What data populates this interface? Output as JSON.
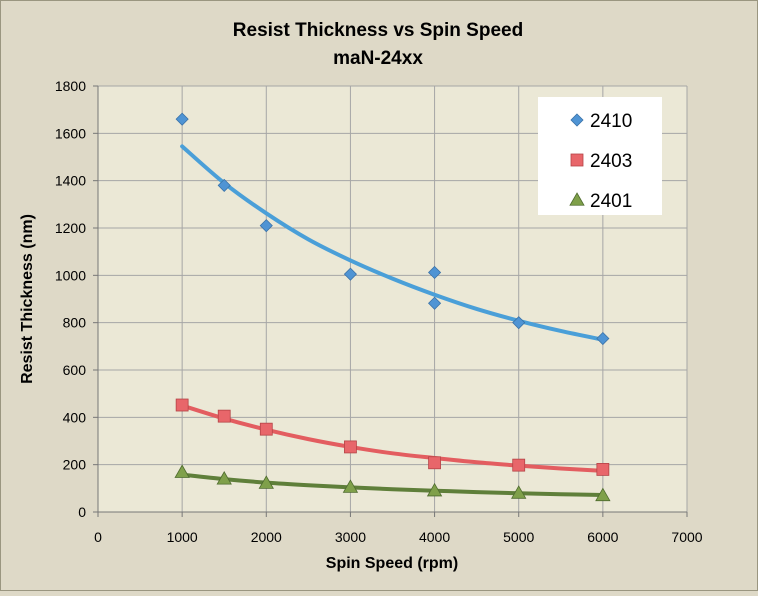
{
  "chart_data": {
    "type": "scatter",
    "title": "Resist Thickness vs Spin Speed",
    "subtitle": "maN-24xx",
    "xlabel": "Spin Speed (rpm)",
    "ylabel": "Resist Thickness (nm)",
    "xlim": [
      0,
      7000
    ],
    "ylim": [
      0,
      1800
    ],
    "xticks": [
      0,
      1000,
      2000,
      3000,
      4000,
      5000,
      6000,
      7000
    ],
    "yticks": [
      0,
      200,
      400,
      600,
      800,
      1000,
      1200,
      1400,
      1600,
      1800
    ],
    "grid": true,
    "legend_position": "top-right",
    "colors": {
      "background": "#ded9c7",
      "plot_area": "#ebe8d6",
      "grid": "#a6a6a6"
    },
    "series": [
      {
        "name": "2410",
        "marker": "diamond",
        "color": "#4f94d4",
        "line_color": "#4a9fd8",
        "points": [
          [
            1000,
            1660
          ],
          [
            1500,
            1380
          ],
          [
            2000,
            1210
          ],
          [
            3000,
            1005
          ],
          [
            4000,
            1012
          ],
          [
            4000,
            882
          ],
          [
            5000,
            800
          ],
          [
            6000,
            733
          ]
        ],
        "trend": [
          [
            1000,
            1545
          ],
          [
            1500,
            1390
          ],
          [
            2000,
            1262
          ],
          [
            2500,
            1152
          ],
          [
            3000,
            1063
          ],
          [
            3500,
            986
          ],
          [
            4000,
            918
          ],
          [
            4500,
            858
          ],
          [
            5000,
            808
          ],
          [
            5500,
            765
          ],
          [
            6000,
            728
          ]
        ]
      },
      {
        "name": "2403",
        "marker": "square",
        "color": "#e8666a",
        "line_color": "#e35d60",
        "points": [
          [
            1000,
            452
          ],
          [
            1500,
            405
          ],
          [
            2000,
            350
          ],
          [
            3000,
            275
          ],
          [
            4000,
            208
          ],
          [
            5000,
            198
          ],
          [
            6000,
            180
          ]
        ],
        "trend": [
          [
            1000,
            450
          ],
          [
            1500,
            395
          ],
          [
            2000,
            348
          ],
          [
            2500,
            308
          ],
          [
            3000,
            275
          ],
          [
            3500,
            248
          ],
          [
            4000,
            228
          ],
          [
            4500,
            210
          ],
          [
            5000,
            196
          ],
          [
            5500,
            184
          ],
          [
            6000,
            174
          ]
        ]
      },
      {
        "name": "2401",
        "marker": "triangle",
        "color": "#7fa04a",
        "line_color": "#5f7f3a",
        "points": [
          [
            1000,
            168
          ],
          [
            1500,
            140
          ],
          [
            2000,
            122
          ],
          [
            3000,
            105
          ],
          [
            4000,
            90
          ],
          [
            5000,
            80
          ],
          [
            6000,
            70
          ]
        ],
        "trend": [
          [
            1000,
            158
          ],
          [
            1500,
            139
          ],
          [
            2000,
            124
          ],
          [
            2500,
            113
          ],
          [
            3000,
            104
          ],
          [
            3500,
            96
          ],
          [
            4000,
            90
          ],
          [
            4500,
            84
          ],
          [
            5000,
            79
          ],
          [
            5500,
            75
          ],
          [
            6000,
            72
          ]
        ]
      }
    ]
  }
}
